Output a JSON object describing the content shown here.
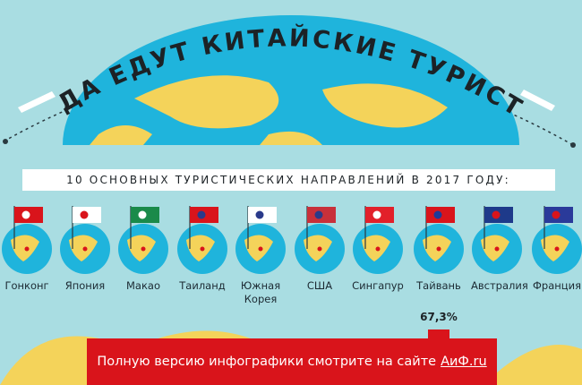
{
  "header": {
    "title": "КУДА ЕДУТ КИТАЙСКИЕ ТУРИСТЫ?",
    "subtitle": "10 ОСНОВНЫХ ТУРИСТИЧЕСКИХ НАПРАВЛЕНИЙ В 2017 ГОДУ:"
  },
  "destinations": [
    "Гонконг",
    "Япония",
    "Макао",
    "Таиланд",
    "Южная Корея",
    "США",
    "Сингапур",
    "Тайвань",
    "Австралия",
    "Франция"
  ],
  "bar_label": "67,3%",
  "banner": {
    "text": "Полную версию инфографики смотрите на сайте",
    "link": "АиФ.ru"
  }
}
